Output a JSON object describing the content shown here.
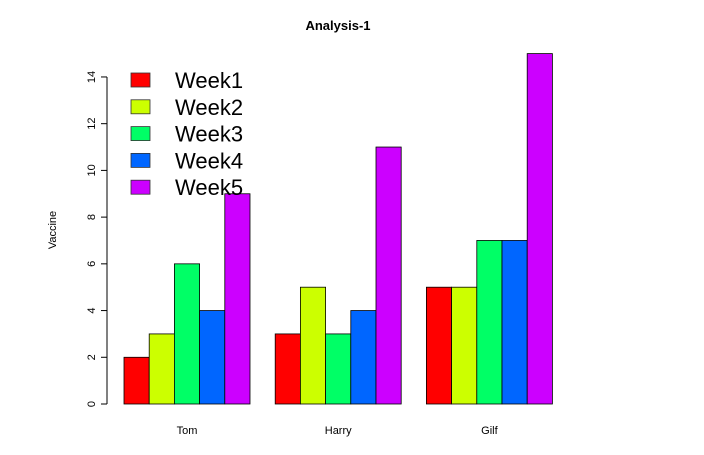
{
  "chart_data": {
    "type": "bar",
    "mode": "grouped",
    "title": "Analysis-1",
    "xlabel": "",
    "ylabel": "Vaccine",
    "categories": [
      "Tom",
      "Harry",
      "Gilf"
    ],
    "series": [
      {
        "name": "Week1",
        "color": "#FF0000",
        "values": [
          2,
          3,
          5
        ]
      },
      {
        "name": "Week2",
        "color": "#CCFF00",
        "values": [
          3,
          5,
          5
        ]
      },
      {
        "name": "Week3",
        "color": "#00FF66",
        "values": [
          6,
          3,
          7
        ]
      },
      {
        "name": "Week4",
        "color": "#0066FF",
        "values": [
          4,
          4,
          7
        ]
      },
      {
        "name": "Week5",
        "color": "#CC00FF",
        "values": [
          9,
          11,
          15
        ]
      }
    ],
    "yticks": [
      0,
      2,
      4,
      6,
      8,
      10,
      12,
      14
    ],
    "ylim": [
      0,
      15
    ],
    "grid": false,
    "legend_position": "top-left"
  }
}
